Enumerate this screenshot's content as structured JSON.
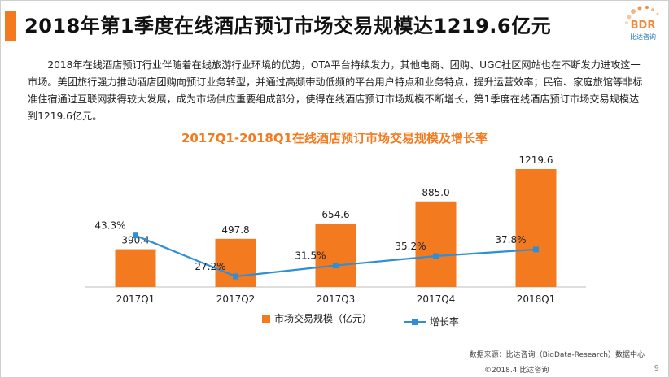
{
  "header": {
    "title": "2018年第1季度在线酒店预订市场交易规模达1219.6亿元",
    "logo_text": "BDR",
    "logo_subtext": "比达咨询"
  },
  "body_text": "2018年在线酒店预订行业伴随着在线旅游行业环境的优势，OTA平台持续发力，其他电商、团购、UGC社区网站也在不断发力进攻这一市场。美团旅行强力推动酒店团购向预订业务转型，并通过高频带动低频的平台用户特点和业务特点，提升运营效率；民宿、家庭旅馆等非标准住宿通过互联网获得较大发展，成为市场供应重要组成部分，使得在线酒店预订市场规模不断增长，第1季度在线酒店预订市场交易规模达到1219.6亿元。",
  "chart_data": {
    "type": "bar",
    "title": "2017Q1-2018Q1在线酒店预订市场交易规模及增长率",
    "categories": [
      "2017Q1",
      "2017Q2",
      "2017Q3",
      "2017Q4",
      "2018Q1"
    ],
    "series": [
      {
        "name": "市场交易规模（亿元）",
        "type": "bar",
        "values": [
          390.4,
          497.8,
          654.6,
          885.0,
          1219.6
        ],
        "labels": [
          "390.4",
          "497.8",
          "654.6",
          "885.0",
          "1219.6"
        ],
        "color": "#f47a1f"
      },
      {
        "name": "增长率",
        "type": "line",
        "values": [
          43.3,
          27.2,
          31.5,
          35.2,
          37.8
        ],
        "labels": [
          "43.3%",
          "27.2%",
          "31.5%",
          "35.2%",
          "37.8%"
        ],
        "color": "#2f8fd6"
      }
    ],
    "bar_ylim": [
      0,
      1300
    ],
    "line_ylim": [
      0,
      60
    ],
    "grid": false,
    "legend_position": "bottom"
  },
  "footer": {
    "source": "数据来源：比达咨询（BigData-Research）数据中心",
    "copyright": "©2018.4 比达咨询",
    "page_number": "9"
  }
}
